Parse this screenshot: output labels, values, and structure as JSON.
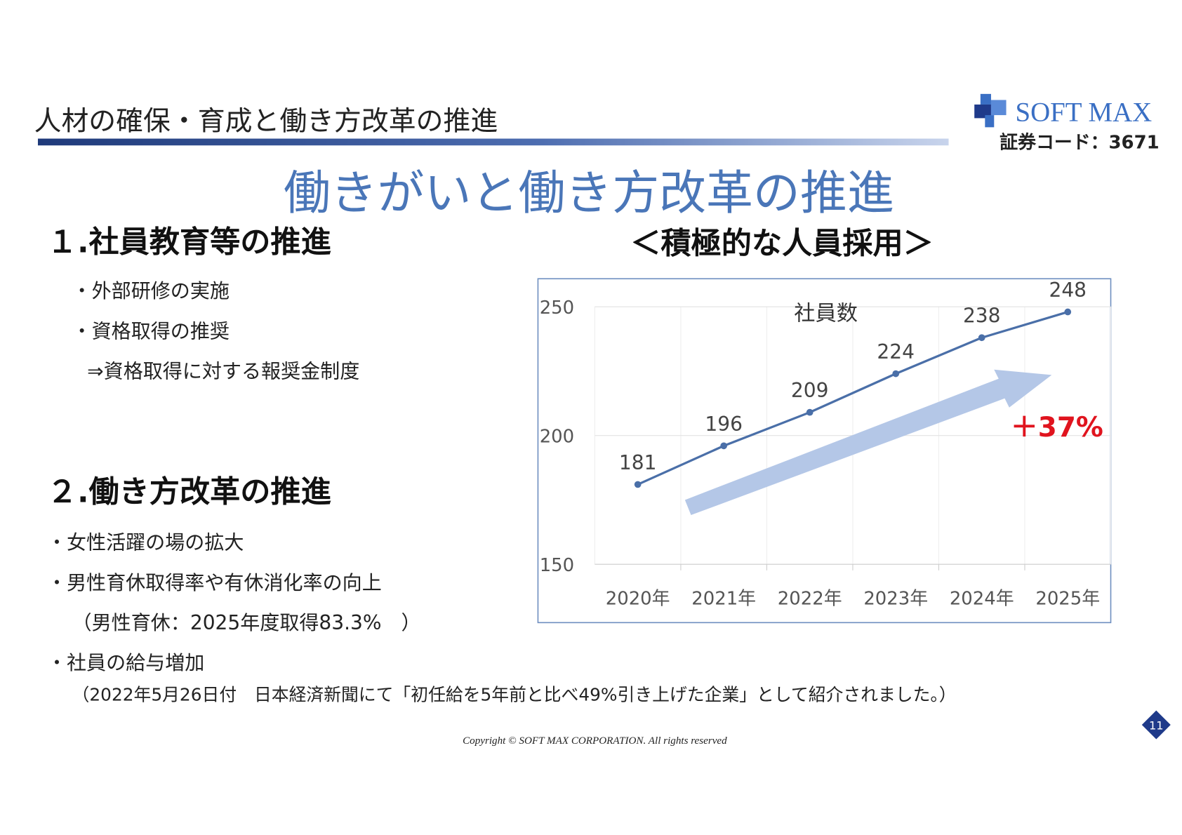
{
  "header": {
    "title": "人材の確保・育成と働き方改革の推進",
    "company": "SOFT MAX",
    "code": "証券コード：3671"
  },
  "main_title": "働きがいと働き方改革の推進",
  "sections": [
    {
      "heading": "１.社員教育等の推進",
      "items": [
        "・外部研修の実施",
        "・資格取得の推奨",
        "⇒資格取得に対する報奨金制度"
      ]
    },
    {
      "heading": "２.働き方改革の推進",
      "items": [
        "・女性活躍の場の拡大",
        "・男性育休取得率や有休消化率の向上",
        "（男性育休：2025年度取得83.3%　）",
        "・社員の給与増加",
        "（2022年5月26日付　日本経済新聞にて「初任給を5年前と比べ49%引き上げた企業」として紹介されました。）"
      ]
    }
  ],
  "chart_heading": "＜積極的な人員採用＞",
  "chart_data": {
    "type": "line",
    "title": "社員数",
    "categories": [
      "2020年",
      "2021年",
      "2022年",
      "2023年",
      "2024年",
      "2025年"
    ],
    "values": [
      181,
      196,
      209,
      224,
      238,
      248
    ],
    "color": "#4a6fa8",
    "ylim": [
      150,
      250
    ],
    "yticks": [
      150,
      200,
      250
    ],
    "grid": true,
    "annotation": "＋37%"
  },
  "footer": {
    "copyright": "Copyright © SOFT MAX CORPORATION. All rights reserved",
    "page": "11"
  }
}
